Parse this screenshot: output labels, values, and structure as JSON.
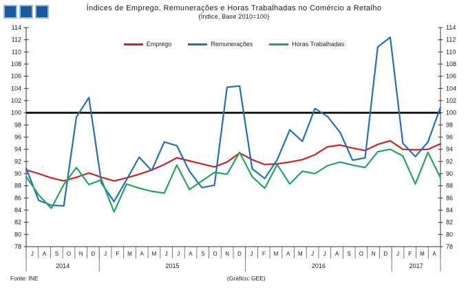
{
  "header": {
    "title": "Índices de Emprego, Remunerações e Horas Trabalhadas no Comércio a Retalho",
    "subtitle": "(Índice, Base 2010=100)",
    "logo_fill": "#1A5A9E",
    "logo_border": "#9FB9D8"
  },
  "footer": {
    "source": "Fonte: INE",
    "credit": "(Gráfico: GEE)"
  },
  "chart_data": {
    "type": "line",
    "title": "Índices de Emprego, Remunerações e Horas Trabalhadas no Comércio a Retalho",
    "subtitle": "(Índice, Base 2010=100)",
    "ylim": [
      78,
      114
    ],
    "ytick_step": 2,
    "reference_line": 100,
    "reference_line_color": "#000000",
    "grid": false,
    "legend_position": "top-center",
    "x_months": [
      "J",
      "A",
      "S",
      "O",
      "N",
      "D",
      "J",
      "F",
      "M",
      "A",
      "M",
      "J",
      "J",
      "A",
      "S",
      "O",
      "N",
      "D",
      "J",
      "F",
      "M",
      "A",
      "M",
      "J",
      "J",
      "A",
      "S",
      "O",
      "N",
      "D",
      "J",
      "F",
      "M",
      "A"
    ],
    "year_groups": [
      {
        "label": "2014",
        "count": 6
      },
      {
        "label": "2015",
        "count": 12
      },
      {
        "label": "2016",
        "count": 12
      },
      {
        "label": "2017",
        "count": 4
      }
    ],
    "series": [
      {
        "name": "Emprego",
        "color": "#CC2222",
        "values": [
          90.6,
          90.0,
          89.3,
          88.8,
          89.4,
          90.1,
          89.4,
          88.8,
          89.3,
          89.9,
          90.6,
          91.5,
          92.6,
          92.1,
          91.6,
          91.1,
          91.9,
          93.4,
          92.3,
          91.5,
          91.6,
          91.9,
          92.3,
          93.1,
          94.4,
          94.7,
          94.2,
          93.8,
          94.8,
          95.4,
          94.0,
          93.9,
          94.0,
          94.9
        ]
      },
      {
        "name": "Remunerações",
        "color": "#2070B8",
        "values": [
          90.9,
          85.6,
          84.8,
          84.7,
          99.3,
          102.5,
          88.4,
          85.4,
          89.0,
          92.7,
          90.5,
          95.2,
          94.6,
          90.4,
          87.7,
          88.1,
          104.2,
          104.4,
          90.8,
          89.2,
          92.3,
          97.2,
          95.3,
          100.7,
          99.4,
          96.8,
          92.2,
          92.6,
          110.8,
          112.4,
          95.0,
          92.8,
          95.2,
          100.9
        ]
      },
      {
        "name": "Horas Trabalhadas",
        "color": "#22A45C",
        "values": [
          89.5,
          86.5,
          84.3,
          88.2,
          91.0,
          88.2,
          89.0,
          83.7,
          88.3,
          87.6,
          87.1,
          86.8,
          91.4,
          87.4,
          88.8,
          90.2,
          89.9,
          93.5,
          89.5,
          87.6,
          91.5,
          88.3,
          90.4,
          90.0,
          91.3,
          91.9,
          91.4,
          91.0,
          93.6,
          94.0,
          92.9,
          88.3,
          93.5,
          89.3
        ]
      }
    ]
  }
}
